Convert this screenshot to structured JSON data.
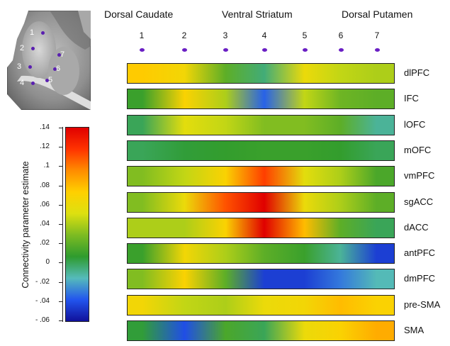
{
  "regions": {
    "left": "Dorsal Caudate",
    "middle": "Ventral Striatum",
    "right": "Dorsal Putamen"
  },
  "seeds": [
    "1",
    "2",
    "3",
    "4",
    "5",
    "6",
    "7"
  ],
  "colorbar": {
    "label": "Connectivity parameter estimate",
    "ticks": [
      ".14",
      ".12",
      ".1",
      ".08",
      ".06",
      ".04",
      ".02",
      "0",
      "- .02",
      "- .04",
      "- .06"
    ],
    "tick_values": [
      0.14,
      0.12,
      0.1,
      0.08,
      0.06,
      0.04,
      0.02,
      0,
      -0.02,
      -0.04,
      -0.06
    ],
    "min": -0.06,
    "max": 0.14,
    "colors_bottom_to_top": [
      "#10109a",
      "#2255ee",
      "#55bbbb",
      "#2e9b2e",
      "#7cbb22",
      "#dde010",
      "#ffd000",
      "#ff8c00",
      "#ff3300",
      "#e00000"
    ]
  },
  "brain_inset_labels": [
    "1",
    "2",
    "3",
    "4",
    "5",
    "6",
    "7"
  ],
  "bands": [
    {
      "label": "dlPFC",
      "values": [
        0.075,
        0.065,
        0.02,
        -0.005,
        0.06,
        0.045,
        0.04
      ]
    },
    {
      "label": "IFC",
      "values": [
        0.01,
        0.07,
        0.04,
        -0.035,
        0.045,
        0.025,
        0.02
      ]
    },
    {
      "label": "lOFC",
      "values": [
        0.0,
        0.055,
        0.045,
        0.03,
        0.03,
        0.02,
        -0.01
      ]
    },
    {
      "label": "mOFC",
      "values": [
        0.0,
        0.005,
        0.008,
        0.01,
        0.01,
        0.008,
        0.0
      ]
    },
    {
      "label": "vmPFC",
      "values": [
        0.03,
        0.045,
        0.07,
        0.115,
        0.055,
        0.04,
        0.015
      ]
    },
    {
      "label": "sgACC",
      "values": [
        0.03,
        0.06,
        0.11,
        0.14,
        0.06,
        0.04,
        0.02
      ]
    },
    {
      "label": "dACC",
      "values": [
        0.04,
        0.04,
        0.07,
        0.14,
        0.08,
        0.02,
        0.0
      ]
    },
    {
      "label": "antPFC",
      "values": [
        0.01,
        0.065,
        0.04,
        0.02,
        0.01,
        -0.01,
        -0.045
      ]
    },
    {
      "label": "dmPFC",
      "values": [
        0.03,
        0.07,
        0.02,
        -0.045,
        -0.045,
        -0.03,
        -0.015
      ]
    },
    {
      "label": "pre-SMA",
      "values": [
        0.065,
        0.045,
        0.04,
        0.06,
        0.065,
        0.08,
        0.07
      ]
    },
    {
      "label": "SMA",
      "values": [
        0.005,
        -0.04,
        0.015,
        0.0,
        0.06,
        0.07,
        0.085
      ]
    }
  ]
}
